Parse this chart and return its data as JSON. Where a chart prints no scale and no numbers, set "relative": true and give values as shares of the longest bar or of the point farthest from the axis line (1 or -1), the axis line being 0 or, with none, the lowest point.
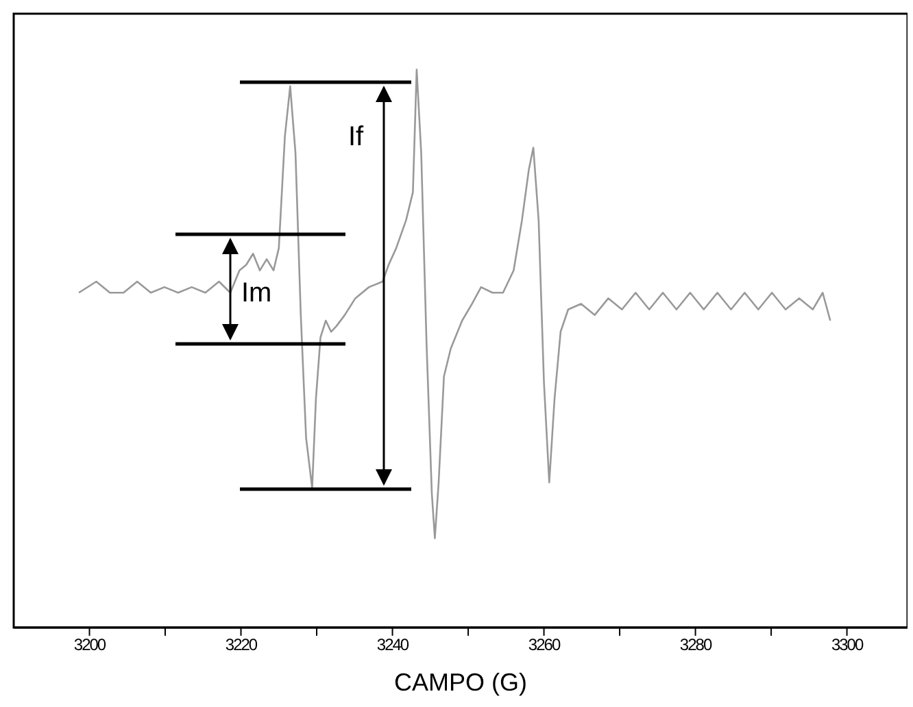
{
  "chart_data": {
    "type": "line",
    "relative": true,
    "xlabel": "CAMPO (G)",
    "x": [
      3198.6,
      3200.9,
      3202.7,
      3204.5,
      3206.3,
      3208.1,
      3209.9,
      3211.7,
      3213.5,
      3215.3,
      3217.1,
      3218.6,
      3219.8,
      3220.7,
      3221.6,
      3222.5,
      3223.4,
      3224.3,
      3225.0,
      3225.8,
      3226.5,
      3227.2,
      3227.9,
      3228.6,
      3229.4,
      3229.9,
      3230.5,
      3231.2,
      3231.9,
      3232.6,
      3233.7,
      3235.1,
      3236.9,
      3238.7,
      3239.5,
      3240.5,
      3241.8,
      3242.7,
      3243.2,
      3243.8,
      3244.5,
      3245.2,
      3245.6,
      3246.1,
      3246.8,
      3247.7,
      3249.2,
      3250.5,
      3251.7,
      3253.2,
      3254.6,
      3256.0,
      3257.1,
      3258.0,
      3258.6,
      3259.3,
      3260.0,
      3260.7,
      3261.4,
      3262.2,
      3263.2,
      3264.9,
      3266.7,
      3268.5,
      3270.3,
      3272.1,
      3273.9,
      3275.7,
      3277.5,
      3279.3,
      3281.1,
      3282.9,
      3284.7,
      3286.5,
      3288.3,
      3290.1,
      3291.9,
      3293.7,
      3295.5,
      3296.8,
      3297.8
    ],
    "series": [
      {
        "color": "#999999",
        "values": [
          0.6,
          0.62,
          0.6,
          0.6,
          0.62,
          0.6,
          0.61,
          0.6,
          0.61,
          0.6,
          0.62,
          0.6,
          0.64,
          0.65,
          0.67,
          0.64,
          0.66,
          0.64,
          0.68,
          0.88,
          0.97,
          0.85,
          0.56,
          0.34,
          0.25,
          0.41,
          0.52,
          0.55,
          0.53,
          0.54,
          0.56,
          0.59,
          0.61,
          0.62,
          0.65,
          0.68,
          0.73,
          0.78,
          1.0,
          0.85,
          0.51,
          0.24,
          0.16,
          0.26,
          0.45,
          0.5,
          0.55,
          0.58,
          0.61,
          0.6,
          0.6,
          0.64,
          0.73,
          0.82,
          0.86,
          0.73,
          0.44,
          0.26,
          0.41,
          0.53,
          0.57,
          0.58,
          0.56,
          0.59,
          0.57,
          0.6,
          0.57,
          0.6,
          0.57,
          0.6,
          0.57,
          0.6,
          0.57,
          0.6,
          0.57,
          0.6,
          0.57,
          0.59,
          0.57,
          0.6,
          0.55
        ]
      }
    ],
    "xlim": [
      3190,
      3308
    ],
    "xticks": [
      3200,
      {
        "value": 3210,
        "label": null
      },
      3220,
      {
        "value": 3230,
        "label": null
      },
      3240,
      {
        "value": 3250,
        "label": null
      },
      3260,
      {
        "value": 3270,
        "label": null
      },
      3280,
      {
        "value": 3290,
        "label": null
      },
      3300
    ],
    "annotations": [
      "If",
      "Im"
    ],
    "grid": false,
    "legend": false
  }
}
